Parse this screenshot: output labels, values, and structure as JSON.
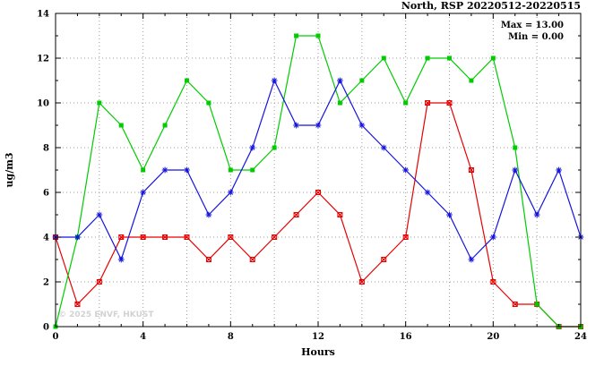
{
  "title": "North, RSP 20220512-20220515",
  "legend": {
    "max_label": "Max = 13.00",
    "min_label": "Min =  0.00"
  },
  "watermark": "© 2025 ENVF, HKUST",
  "chart_data": {
    "type": "line",
    "title": "North, RSP 20220512-20220515",
    "xlabel": "Hours",
    "ylabel": "ug/m3",
    "xlim": [
      0,
      24
    ],
    "ylim": [
      0,
      14
    ],
    "xticks": [
      0,
      4,
      8,
      12,
      16,
      20,
      24
    ],
    "yticks": [
      0,
      2,
      4,
      6,
      8,
      10,
      12,
      14
    ],
    "x_minor_step": 1,
    "y_minor_step": 1,
    "x_grid_step": 2,
    "y_grid_step": 2,
    "grid": true,
    "grid_color": "#9f9f9f",
    "axis_color": "#000000",
    "x": [
      0,
      1,
      2,
      3,
      4,
      5,
      6,
      7,
      8,
      9,
      10,
      11,
      12,
      13,
      14,
      15,
      16,
      17,
      18,
      19,
      20,
      21,
      22,
      23,
      24
    ],
    "series": [
      {
        "name": "red",
        "color": "#e60000",
        "marker": "square-cross",
        "values": [
          4,
          1,
          2,
          4,
          4,
          4,
          4,
          3,
          4,
          3,
          4,
          5,
          6,
          5,
          2,
          3,
          4,
          10,
          10,
          7,
          2,
          1,
          1,
          0,
          0
        ]
      },
      {
        "name": "green",
        "color": "#00cc00",
        "marker": "square",
        "values": [
          0,
          4,
          10,
          9,
          7,
          9,
          11,
          10,
          7,
          7,
          8,
          13,
          13,
          10,
          11,
          12,
          10,
          12,
          12,
          11,
          12,
          8,
          1,
          0,
          0
        ]
      },
      {
        "name": "blue",
        "color": "#1515dd",
        "marker": "asterisk",
        "values": [
          4,
          4,
          5,
          3,
          6,
          7,
          7,
          5,
          6,
          8,
          11,
          9,
          9,
          11,
          9,
          8,
          7,
          6,
          5,
          3,
          4,
          7,
          5,
          7,
          4
        ]
      }
    ]
  }
}
